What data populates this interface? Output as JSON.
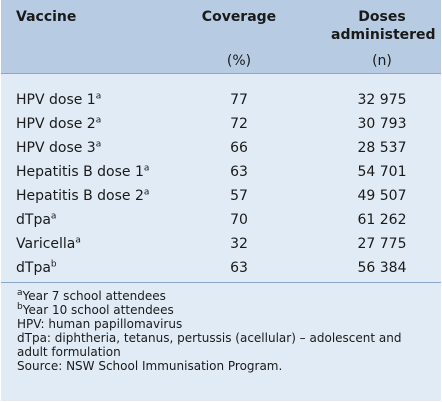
{
  "header": {
    "vaccine": "Vaccine",
    "coverage": "Coverage",
    "coverage_unit": "(%)",
    "doses_line1": "Doses",
    "doses_line2": "administered",
    "doses_unit": "(n)"
  },
  "rows": [
    {
      "name": "HPV dose 1",
      "sup": "a",
      "coverage": "77",
      "doses": "32 975"
    },
    {
      "name": "HPV dose 2",
      "sup": "a",
      "coverage": "72",
      "doses": "30 793"
    },
    {
      "name": "HPV dose 3",
      "sup": "a",
      "coverage": "66",
      "doses": "28 537"
    },
    {
      "name": "Hepatitis B dose 1",
      "sup": "a",
      "coverage": "63",
      "doses": "54 701"
    },
    {
      "name": "Hepatitis B dose 2",
      "sup": "a",
      "coverage": "57",
      "doses": "49 507"
    },
    {
      "name": "dTpa",
      "sup": "a",
      "coverage": "70",
      "doses": "61 262"
    },
    {
      "name": "Varicella",
      "sup": "a",
      "coverage": "32",
      "doses": "27 775"
    },
    {
      "name": "dTpa",
      "sup": "b",
      "coverage": "63",
      "doses": "56 384"
    }
  ],
  "notes": {
    "a_mark": "a",
    "a_text": "Year 7 school attendees",
    "b_mark": "b",
    "b_text": "Year 10 school attendees",
    "hpv": "HPV: human papillomavirus",
    "dtpa": "dTpa: diphtheria, tetanus, pertussis (acellular) – adolescent and adult formulation",
    "source": "Source: NSW School Immunisation Program."
  }
}
